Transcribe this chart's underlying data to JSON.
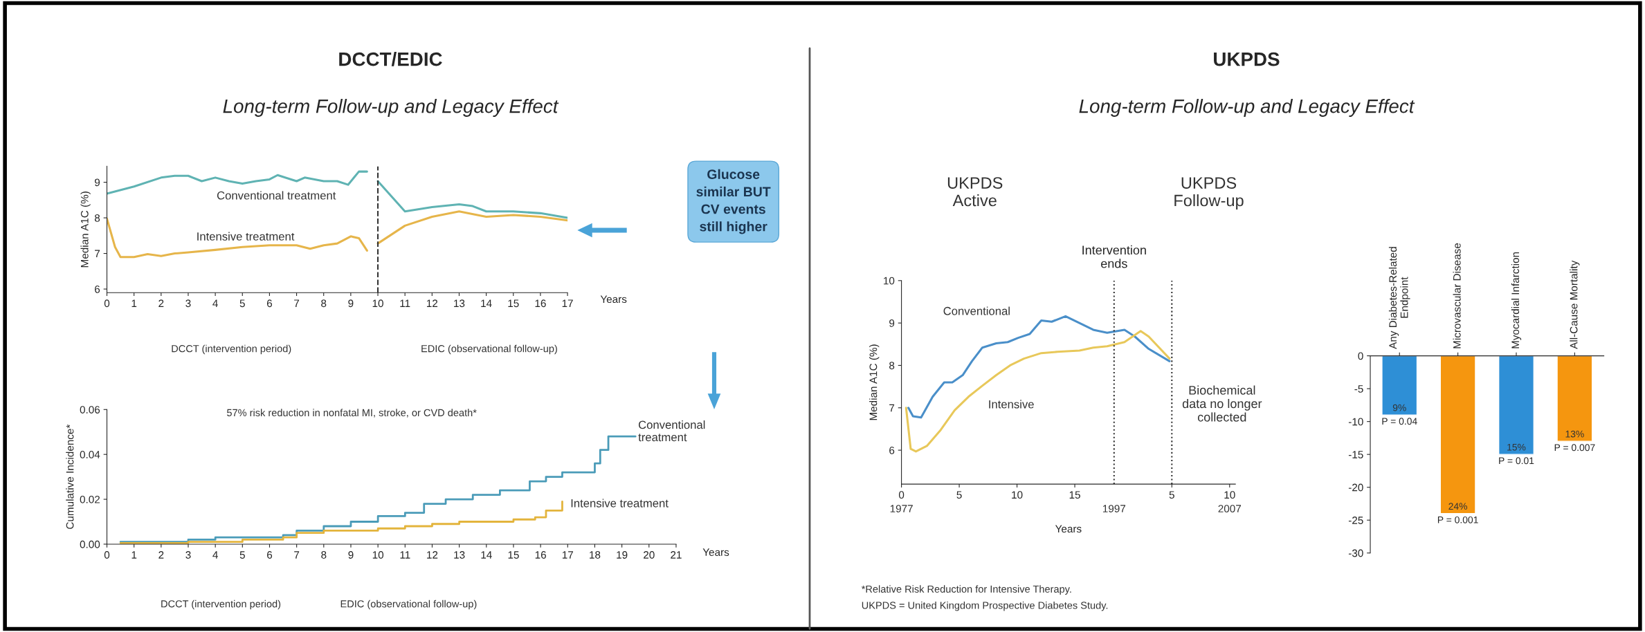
{
  "chart_data": [
    {
      "type": "line",
      "title": "DCCT/EDIC",
      "subtitle": "Long-term Follow-up and Legacy Effect",
      "ylabel": "Median A1C (%)",
      "xlabel": "Years",
      "xlim": [
        0,
        17
      ],
      "xticks": [
        0,
        1,
        2,
        3,
        4,
        5,
        6,
        7,
        8,
        9,
        10,
        11,
        12,
        13,
        14,
        15,
        16,
        17
      ],
      "ylim": [
        5.9,
        9.45
      ],
      "yticks": [
        6,
        7,
        8,
        9
      ],
      "series": [
        {
          "name": "Conventional treatment",
          "color": "#5fb3b3",
          "x": [
            0,
            1,
            2,
            2.5,
            3,
            3.5,
            4,
            4.5,
            5,
            5.5,
            6,
            6.3,
            7,
            7.3,
            8,
            8.5,
            8.9,
            9.3,
            9.6,
            9.8,
            10,
            11,
            12,
            13,
            13.5,
            14,
            15,
            16,
            17
          ],
          "values": [
            8.68,
            8.88,
            9.13,
            9.18,
            9.18,
            9.03,
            9.13,
            9.03,
            8.96,
            9.03,
            9.08,
            9.2,
            9.03,
            9.13,
            9.03,
            9.03,
            8.93,
            9.3,
            9.3,
            null,
            9.03,
            8.18,
            8.3,
            8.38,
            8.33,
            8.18,
            8.18,
            8.13,
            8.0
          ]
        },
        {
          "name": "Intensive treatment",
          "color": "#e6b54a",
          "x": [
            0,
            0.3,
            0.5,
            1,
            1.5,
            2,
            2.5,
            3,
            4,
            5,
            6,
            7,
            7.5,
            8,
            8.5,
            9,
            9.3,
            9.6,
            9.8,
            10,
            11,
            12,
            13,
            14,
            15,
            16,
            17
          ],
          "values": [
            7.98,
            7.18,
            6.9,
            6.9,
            6.98,
            6.93,
            7.0,
            7.03,
            7.1,
            7.18,
            7.23,
            7.23,
            7.13,
            7.23,
            7.28,
            7.48,
            7.43,
            7.08,
            null,
            7.28,
            7.78,
            8.03,
            8.18,
            8.03,
            8.08,
            8.03,
            7.93
          ]
        }
      ],
      "ref_lines": [
        {
          "axis": "x",
          "value": 10,
          "line_style": "dashed",
          "color": "#333333"
        }
      ],
      "annotations": [
        "DCCT (intervention period)",
        "EDIC (observational follow-up)",
        "Glucose\nsimilar BUT\nCV events\nstill higher"
      ]
    },
    {
      "type": "step",
      "ylabel": "Cumulative Incidence*",
      "xlabel": "Years",
      "xlim": [
        0,
        21
      ],
      "xticks": [
        0,
        1,
        2,
        3,
        4,
        5,
        6,
        7,
        8,
        9,
        10,
        11,
        12,
        13,
        14,
        15,
        16,
        17,
        18,
        19,
        20,
        21
      ],
      "ylim": [
        0,
        0.06
      ],
      "yticks": [
        {
          "value": 0,
          "label": "0.00"
        },
        {
          "value": 0.02,
          "label": "0.02"
        },
        {
          "value": 0.04,
          "label": "0.04"
        },
        {
          "value": 0.06,
          "label": "0.06"
        }
      ],
      "series": [
        {
          "name": "Conventional\ntreatment",
          "color": "#4a9bb8",
          "x": [
            0.5,
            3,
            4,
            6.5,
            7,
            8,
            9,
            10,
            11,
            11.7,
            12.5,
            13.5,
            14.5,
            15.6,
            16.2,
            16.8,
            18,
            18.2,
            18.5,
            19.5
          ],
          "values": [
            0.001,
            0.002,
            0.003,
            0.004,
            0.006,
            0.008,
            0.01,
            0.0125,
            0.014,
            0.018,
            0.02,
            0.022,
            0.024,
            0.028,
            0.03,
            0.032,
            0.036,
            0.042,
            0.048,
            0.048
          ]
        },
        {
          "name": "Intensive treatment",
          "color": "#e3b43c",
          "x": [
            0.5,
            3,
            5,
            6.5,
            7,
            8,
            10,
            11,
            12,
            13,
            15,
            15.8,
            16.2,
            16.8
          ],
          "values": [
            0.0005,
            0.001,
            0.002,
            0.003,
            0.005,
            0.006,
            0.007,
            0.008,
            0.009,
            0.01,
            0.011,
            0.012,
            0.015,
            0.019
          ]
        }
      ],
      "annotations": [
        "57% risk reduction in nonfatal MI, stroke, or CVD death*",
        "DCCT (intervention period)",
        "EDIC (observational follow-up)"
      ]
    },
    {
      "type": "line",
      "title": "UKPDS",
      "subtitle": "Long-term Follow-up and Legacy Effect",
      "ylabel": "Median A1C (%)",
      "xlabel": "Years",
      "xlim": [
        0,
        28.9
      ],
      "xticks": [
        0,
        5,
        10,
        15
      ],
      "x2lim": [
        -18.4,
        10.5
      ],
      "x2ticks": [
        5,
        10
      ],
      "ylim": [
        5.2,
        10
      ],
      "yticks": [
        6,
        7,
        8,
        9,
        10
      ],
      "series": [
        {
          "name": "Conventional",
          "color": "#4a8fc9",
          "x": [
            0.6,
            1.0,
            1.7,
            2.7,
            3.7,
            4.4,
            5.3,
            6.1,
            7.0,
            8.2,
            9.2,
            10.1,
            11.1,
            12.1,
            13.0,
            14.2,
            15.4,
            16.6,
            17.8,
            19.3,
            20.2,
            21.4,
            23.2
          ],
          "values": [
            7.0,
            6.8,
            6.77,
            7.26,
            7.6,
            7.6,
            7.77,
            8.1,
            8.42,
            8.52,
            8.55,
            8.65,
            8.74,
            9.06,
            9.03,
            9.16,
            9.0,
            8.84,
            8.77,
            8.84,
            8.68,
            8.39,
            8.1
          ]
        },
        {
          "name": "Intensive",
          "color": "#e8c85a",
          "x": [
            0.4,
            0.8,
            1.25,
            2.2,
            3.4,
            4.6,
            5.8,
            7.0,
            8.2,
            9.4,
            10.6,
            12.1,
            13.5,
            15.4,
            16.6,
            17.8,
            19.3,
            20.7,
            21.4,
            23.2
          ],
          "values": [
            7.0,
            6.03,
            5.97,
            6.1,
            6.48,
            6.94,
            7.26,
            7.52,
            7.77,
            8.0,
            8.16,
            8.29,
            8.32,
            8.35,
            8.42,
            8.45,
            8.55,
            8.81,
            8.68,
            8.16
          ]
        }
      ],
      "ref_lines": [
        {
          "axis": "x",
          "value": 18.4,
          "label": "Intervention\nends",
          "line_style": "dotted",
          "color": "#333333"
        },
        {
          "axis": "x",
          "value": 23.4,
          "line_style": "dotted",
          "color": "#333333"
        }
      ],
      "annotations": [
        "UKPDS\nActive",
        "UKPDS\nFollow-up",
        "Biochemical\ndata no longer\ncollected",
        "*Relative Risk Reduction for Intensive Therapy.",
        "UKPDS = United Kingdom Prospective Diabetes Study.",
        "1977",
        "1997",
        "2007"
      ]
    },
    {
      "type": "bar",
      "categories": [
        "Any Diabetes-Related\nEndpoint",
        "Microvascular Disease",
        "Myocardial Infarction",
        "All-Cause Mortality"
      ],
      "values": [
        -9,
        -24,
        -15,
        -13
      ],
      "colors": [
        "#2e8fd6",
        "#f5960f",
        "#2e8fd6",
        "#f5960f"
      ],
      "ylim": [
        -30,
        0
      ],
      "yticks": [
        0,
        -5,
        -10,
        -15,
        -20,
        -25,
        -30
      ],
      "annotations": [
        {
          "text": "P = 0.04",
          "x": "Any Diabetes-Related\nEndpoint",
          "y": -9
        },
        {
          "text": "P = 0.001",
          "x": "Microvascular Disease",
          "y": -24
        },
        {
          "text": "P = 0.01",
          "x": "Myocardial Infarction",
          "y": -15
        },
        {
          "text": "P = 0.007",
          "x": "All-Cause Mortality",
          "y": -13
        },
        {
          "text": "9%",
          "x": "Any Diabetes-Related\nEndpoint",
          "y": -9
        },
        {
          "text": "24%",
          "x": "Microvascular Disease",
          "y": -24
        },
        {
          "text": "15%",
          "x": "Myocardial Infarction",
          "y": -15
        },
        {
          "text": "13%",
          "x": "All-Cause Mortality",
          "y": -13
        }
      ]
    }
  ]
}
